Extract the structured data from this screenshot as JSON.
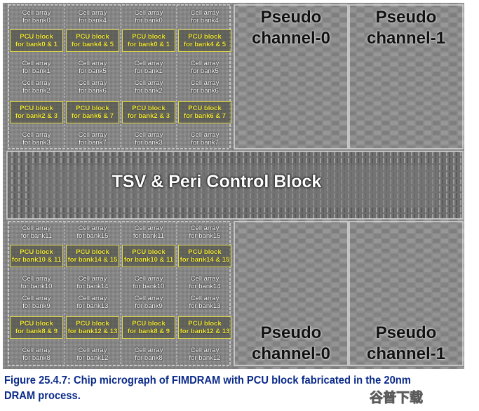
{
  "micrograph": {
    "cell_rows_top": [
      [
        [
          "Cell array",
          "for bank0"
        ],
        [
          "Cell array",
          "for bank4"
        ],
        [
          "Cell array",
          "for bank0"
        ],
        [
          "Cell array",
          "for bank4"
        ]
      ],
      [
        [
          "Cell array",
          "for bank1"
        ],
        [
          "Cell array",
          "for bank5"
        ],
        [
          "Cell array",
          "for bank1"
        ],
        [
          "Cell array",
          "for bank5"
        ]
      ],
      [
        [
          "Cell array",
          "for bank2"
        ],
        [
          "Cell array",
          "for bank6"
        ],
        [
          "Cell array",
          "for bank2"
        ],
        [
          "Cell array",
          "for bank6"
        ]
      ],
      [
        [
          "Cell array",
          "for bank3"
        ],
        [
          "Cell array",
          "for bank7"
        ],
        [
          "Cell array",
          "for bank3"
        ],
        [
          "Cell array",
          "for bank7"
        ]
      ]
    ],
    "pcu_rows_top": [
      [
        [
          "PCU block",
          "for bank0 & 1"
        ],
        [
          "PCU block",
          "for bank4 & 5"
        ],
        [
          "PCU block",
          "for bank0 & 1"
        ],
        [
          "PCU block",
          "for bank4 & 5"
        ]
      ],
      [
        [
          "PCU block",
          "for bank2 & 3"
        ],
        [
          "PCU block",
          "for bank6 & 7"
        ],
        [
          "PCU block",
          "for bank2 & 3"
        ],
        [
          "PCU block",
          "for bank6 & 7"
        ]
      ]
    ],
    "cell_rows_bottom": [
      [
        [
          "Cell array",
          "for bank11"
        ],
        [
          "Cell array",
          "for bank15"
        ],
        [
          "Cell array",
          "for bank11"
        ],
        [
          "Cell array",
          "for bank15"
        ]
      ],
      [
        [
          "Cell array",
          "for bank10"
        ],
        [
          "Cell array",
          "for bank14"
        ],
        [
          "Cell array",
          "for bank10"
        ],
        [
          "Cell array",
          "for bank14"
        ]
      ],
      [
        [
          "Cell array",
          "for bank9"
        ],
        [
          "Cell array",
          "for bank13"
        ],
        [
          "Cell array",
          "for bank9"
        ],
        [
          "Cell array",
          "for bank13"
        ]
      ],
      [
        [
          "Cell array",
          "for bank8"
        ],
        [
          "Cell array",
          "for bank12"
        ],
        [
          "Cell array",
          "for bank8"
        ],
        [
          "Cell array",
          "for bank12"
        ]
      ]
    ],
    "pcu_rows_bottom": [
      [
        [
          "PCU block",
          "for bank10 & 11"
        ],
        [
          "PCU block",
          "for bank14 & 15"
        ],
        [
          "PCU block",
          "for bank10 & 11"
        ],
        [
          "PCU block",
          "for bank14 & 15"
        ]
      ],
      [
        [
          "PCU block",
          "for bank8 & 9"
        ],
        [
          "PCU block",
          "for bank12 & 13"
        ],
        [
          "PCU block",
          "for bank8 & 9"
        ],
        [
          "PCU block",
          "for bank12 & 13"
        ]
      ]
    ],
    "pseudo_labels": {
      "top_left": [
        "Pseudo",
        "channel-0"
      ],
      "top_right": [
        "Pseudo",
        "channel-1"
      ],
      "bottom_left": [
        "Pseudo",
        "channel-0"
      ],
      "bottom_right": [
        "Pseudo",
        "channel-1"
      ]
    },
    "center_label": "TSV & Peri Control Block",
    "colors": {
      "pcu_text": "#f2ea3c",
      "pcu_border": "#e0d84a",
      "cell_text": "#ffffff",
      "caption": "#0a2a8a"
    }
  },
  "caption": {
    "line1": "Figure 25.4.7: Chip micrograph of FIMDRAM with PCU block fabricated in the 20nm",
    "line2": "DRAM process."
  },
  "watermark": {
    "text": "谷普下载",
    "icon": "logo-watermark"
  }
}
